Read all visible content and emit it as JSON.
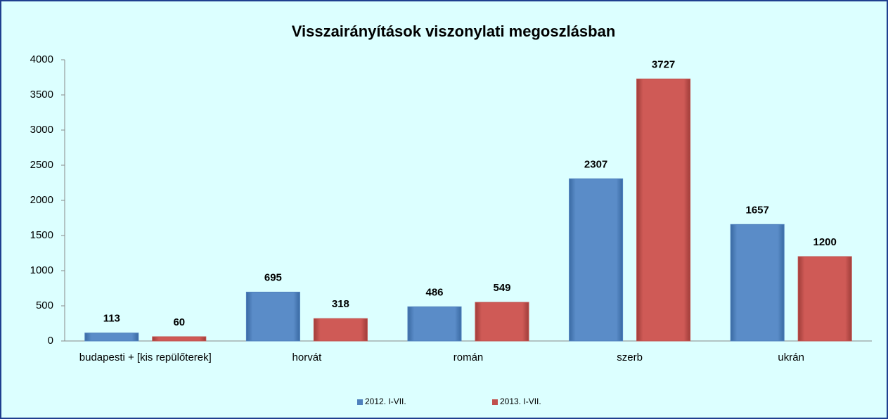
{
  "chart_data": {
    "type": "bar",
    "title": "Visszairányítások viszonylati megoszlásban",
    "categories": [
      "budapesti + [kis repülőterek]",
      "horvát",
      "román",
      "szerb",
      "ukrán"
    ],
    "series": [
      {
        "name": "2012. I-VII.",
        "color": "#4f81bd",
        "values": [
          113,
          695,
          486,
          2307,
          1657
        ]
      },
      {
        "name": "2013. I-VII.",
        "color": "#c0504d",
        "values": [
          60,
          318,
          549,
          3727,
          1200
        ]
      }
    ],
    "ylim": [
      0,
      4000
    ],
    "yticks": [
      0,
      500,
      1000,
      1500,
      2000,
      2500,
      3000,
      3500,
      4000
    ],
    "grid": false,
    "legend": "bottom"
  }
}
